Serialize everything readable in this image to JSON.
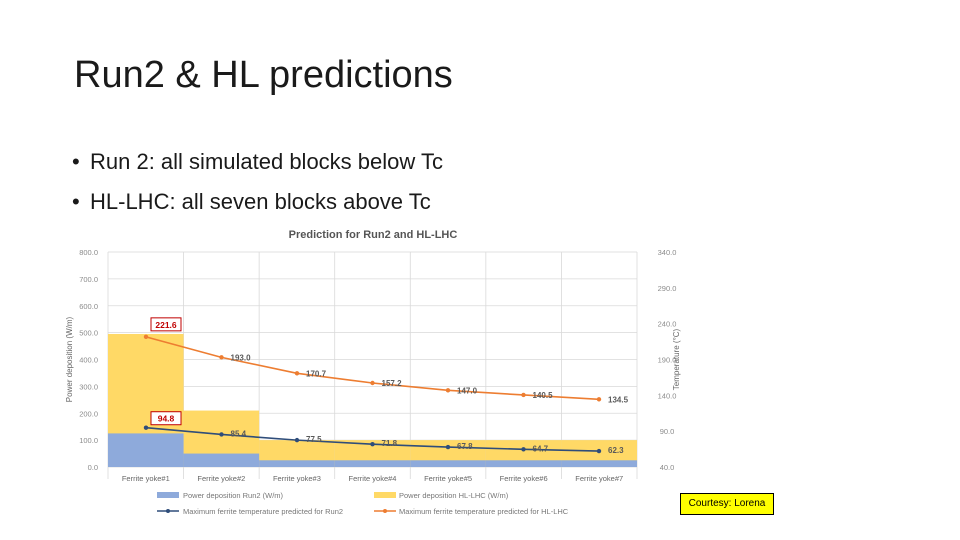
{
  "slide": {
    "title": "Run2 & HL predictions",
    "bullets": [
      "Run 2: all simulated blocks below Tc",
      "HL-LHC: all seven blocks above Tc"
    ],
    "courtesy": "Courtesy: Lorena"
  },
  "colors": {
    "power_run2": "#8eaadb",
    "power_hl": "#ffd966",
    "temp_run2": "#2f4d7a",
    "temp_hl": "#ed7d31",
    "label_box_border": "#c00000",
    "label_text": "#c00000",
    "gridline": "#d9d9d9",
    "axis_text": "#8c8c8c",
    "courtesy_background": "#ffff00"
  },
  "chart_data": {
    "type": "bar",
    "title": "Prediction for Run2 and HL-LHC",
    "ylabel": "Power deposition (W/m)",
    "y2label": "Temperature (°C)",
    "ylim": [
      0,
      800
    ],
    "y2lim": [
      40,
      340
    ],
    "yticks": [
      "0.0",
      "100.0",
      "200.0",
      "300.0",
      "400.0",
      "500.0",
      "600.0",
      "700.0",
      "800.0"
    ],
    "y2ticks": [
      "40.0",
      "90.0",
      "140.0",
      "190.0",
      "240.0",
      "290.0",
      "340.0"
    ],
    "grid": true,
    "legend_position": "bottom",
    "categories": [
      "Ferrite yoke#1",
      "Ferrite yoke#2",
      "Ferrite yoke#3",
      "Ferrite yoke#4",
      "Ferrite yoke#5",
      "Ferrite yoke#6",
      "Ferrite yoke#7"
    ],
    "bar_series": [
      {
        "name": "Power deposition Run2 (W/m)",
        "values": [
          125,
          50,
          25,
          25,
          25,
          25,
          25
        ]
      },
      {
        "name": "Power deposition HL-LHC (W/m)",
        "values": [
          495,
          210,
          100,
          100,
          100,
          100,
          100
        ]
      }
    ],
    "line_series": [
      {
        "name": "Maximum ferrite temperature predicted for Run2",
        "axis": "right",
        "values": [
          94.8,
          85.4,
          77.5,
          71.8,
          67.8,
          64.7,
          62.3
        ],
        "labels": [
          "94.8",
          "85.4",
          "77.5",
          "71.8",
          "67.8",
          "64.7",
          "62.3"
        ]
      },
      {
        "name": "Maximum ferrite temperature predicted for HL-LHC",
        "axis": "right",
        "values": [
          221.6,
          193.0,
          170.7,
          157.2,
          147.0,
          140.5,
          134.5
        ],
        "labels": [
          "221.6",
          "193.0",
          "170.7",
          "157.2",
          "147.0",
          "140.5",
          "134.5"
        ]
      }
    ]
  }
}
